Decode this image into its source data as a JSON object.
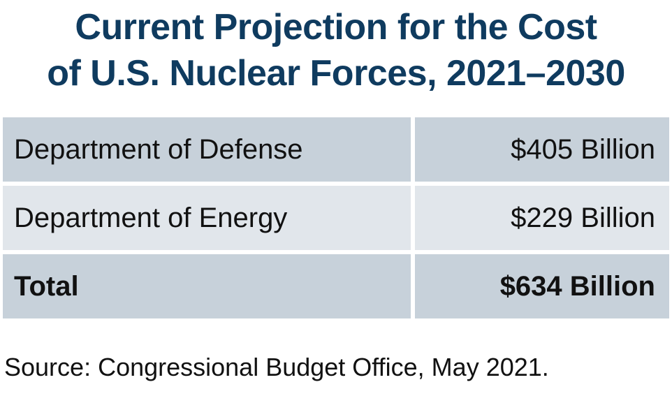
{
  "chart_data": {
    "type": "table",
    "title_lines": [
      "Current Projection for the Cost",
      "of U.S. Nuclear Forces, 2021–2030"
    ],
    "rows": [
      {
        "label": "Department of Defense",
        "value_text": "$405 Billion",
        "value": 405
      },
      {
        "label": "Department of Energy",
        "value_text": "$229 Billion",
        "value": 229
      }
    ],
    "total": {
      "label": "Total",
      "value_text": "$634 Billion",
      "value": 634
    },
    "unit": "Billion",
    "source": "Source: Congressional Budget Office, May 2021.",
    "colors": {
      "title": "#0f3b5f",
      "row_dark": "#c7d1da",
      "row_light": "#e1e6eb"
    }
  }
}
